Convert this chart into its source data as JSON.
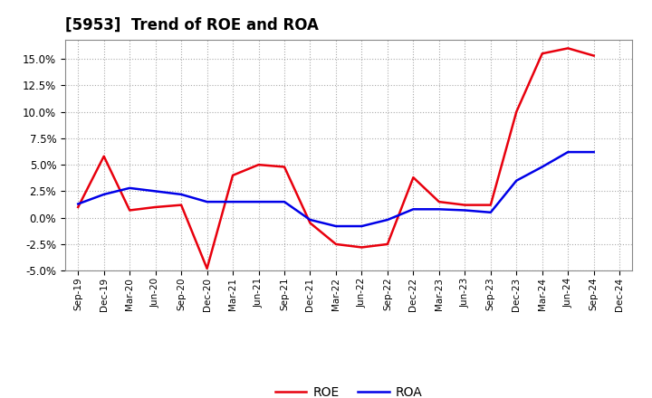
{
  "title": "[5953]  Trend of ROE and ROA",
  "x_labels": [
    "Sep-19",
    "Dec-19",
    "Mar-20",
    "Jun-20",
    "Sep-20",
    "Dec-20",
    "Mar-21",
    "Jun-21",
    "Sep-21",
    "Dec-21",
    "Mar-22",
    "Jun-22",
    "Sep-22",
    "Dec-22",
    "Mar-23",
    "Jun-23",
    "Sep-23",
    "Dec-23",
    "Mar-24",
    "Jun-24",
    "Sep-24",
    "Dec-24"
  ],
  "roe": [
    0.01,
    0.058,
    0.007,
    0.01,
    0.012,
    -0.048,
    0.04,
    0.05,
    0.048,
    -0.005,
    -0.025,
    -0.028,
    -0.025,
    0.038,
    0.015,
    0.012,
    0.012,
    0.1,
    0.155,
    0.16,
    0.153,
    null
  ],
  "roa": [
    0.013,
    0.022,
    0.028,
    0.025,
    0.022,
    0.015,
    0.015,
    0.015,
    0.015,
    -0.002,
    -0.008,
    -0.008,
    -0.002,
    0.008,
    0.008,
    0.007,
    0.005,
    0.035,
    0.048,
    0.062,
    0.062,
    null
  ],
  "roe_color": "#e8000d",
  "roa_color": "#0000e8",
  "ylim": [
    -0.05,
    0.168
  ],
  "yticks": [
    -0.05,
    -0.025,
    0.0,
    0.025,
    0.05,
    0.075,
    0.1,
    0.125,
    0.15
  ],
  "background_color": "#ffffff",
  "grid_color": "#aaaaaa",
  "title_fontsize": 12
}
